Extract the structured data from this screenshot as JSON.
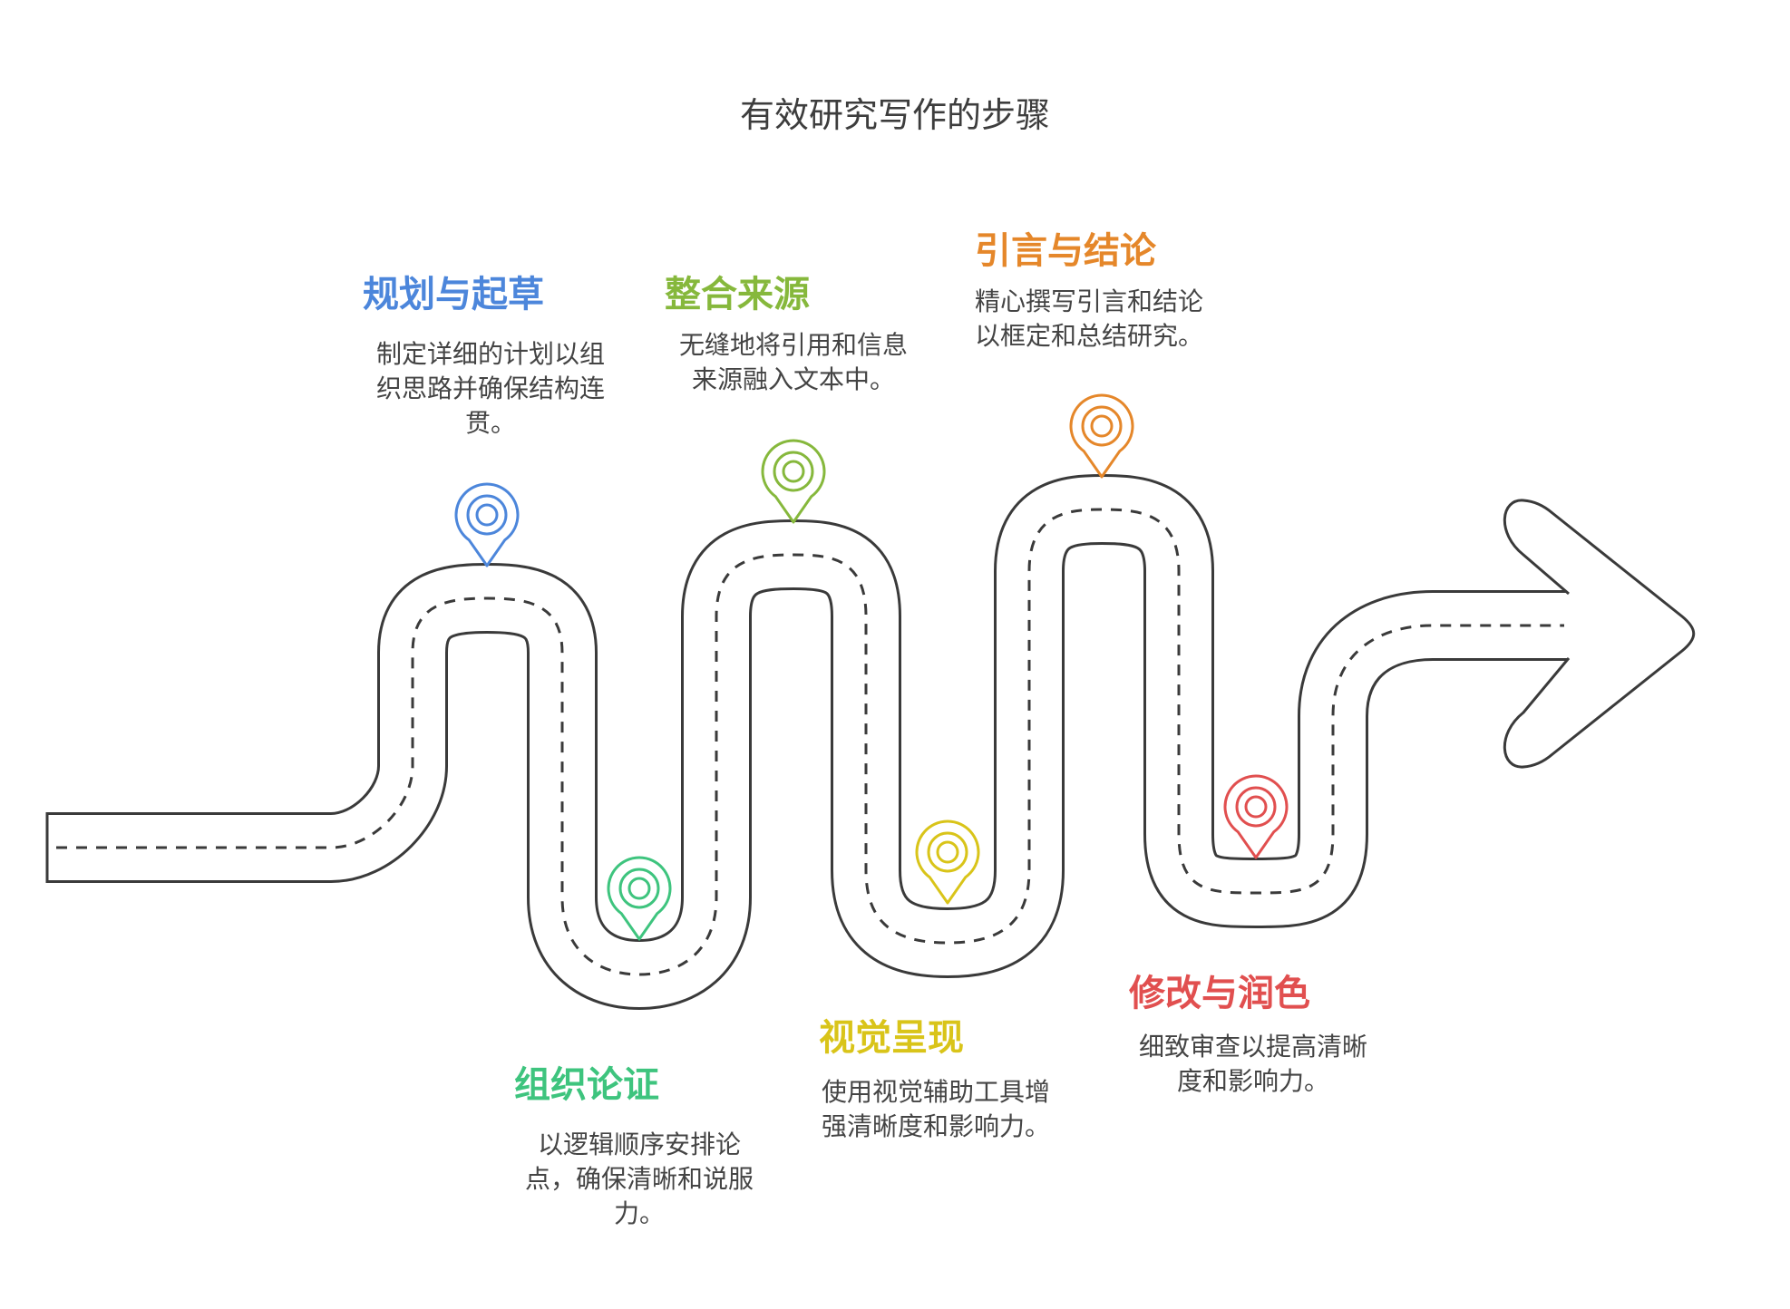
{
  "title": "有效研究写作的步骤",
  "colors": {
    "road": "#3a3a3a",
    "blue": "#4c86db",
    "green": "#3ec47e",
    "lime": "#86b83c",
    "yellow": "#d9c419",
    "orange": "#e5872a",
    "red": "#e14f4f"
  },
  "steps": [
    {
      "id": "plan",
      "title": "规划与起草",
      "desc_lines": [
        "制定详细的计划以组",
        "织思路并确保结构连",
        "贯。"
      ],
      "icon": "location-pin-icon",
      "color": "#4c86db"
    },
    {
      "id": "organize",
      "title": "组织论证",
      "desc_lines": [
        "以逻辑顺序安排论",
        "点，确保清晰和说服",
        "力。"
      ],
      "icon": "location-pin-icon",
      "color": "#3ec47e"
    },
    {
      "id": "integrate",
      "title": "整合来源",
      "desc_lines": [
        "无缝地将引用和信息",
        "来源融入文本中。"
      ],
      "icon": "location-pin-icon",
      "color": "#86b83c"
    },
    {
      "id": "visual",
      "title": "视觉呈现",
      "desc_lines": [
        "使用视觉辅助工具增",
        "强清晰度和影响力。"
      ],
      "icon": "location-pin-icon",
      "color": "#d9c419"
    },
    {
      "id": "intro",
      "title": "引言与结论",
      "desc_lines": [
        "精心撰写引言和结论",
        "以框定和总结研究。"
      ],
      "icon": "location-pin-icon",
      "color": "#e5872a"
    },
    {
      "id": "revise",
      "title": "修改与润色",
      "desc_lines": [
        "细致审查以提高清晰",
        "度和影响力。"
      ],
      "icon": "location-pin-icon",
      "color": "#e14f4f"
    }
  ]
}
